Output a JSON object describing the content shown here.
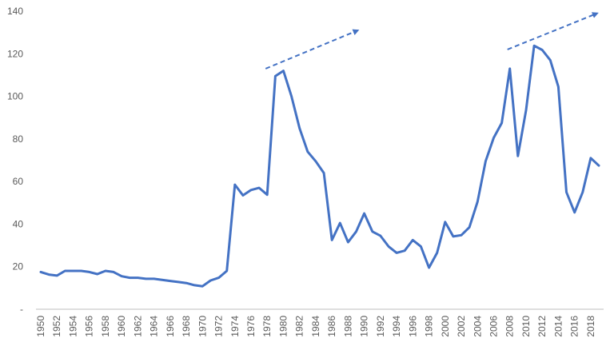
{
  "chart_data": {
    "type": "line",
    "title": "",
    "xlabel": "",
    "ylabel": "",
    "ylim": [
      0,
      140
    ],
    "grid": false,
    "legend": "none",
    "y_ticks": [
      0,
      20,
      40,
      60,
      80,
      100,
      120,
      140
    ],
    "y_tick_labels": [
      "-",
      "20",
      "40",
      "60",
      "80",
      "100",
      "120",
      "140"
    ],
    "x_tick_labels": [
      "1950",
      "1952",
      "1954",
      "1956",
      "1958",
      "1960",
      "1962",
      "1964",
      "1966",
      "1968",
      "1970",
      "1972",
      "1974",
      "1976",
      "1978",
      "1980",
      "1982",
      "1984",
      "1986",
      "1988",
      "1990",
      "1992",
      "1994",
      "1996",
      "1998",
      "2000",
      "2002",
      "2004",
      "2006",
      "2008",
      "2010",
      "2012",
      "2014",
      "2016",
      "2018"
    ],
    "series": [
      {
        "color": "#4472C4",
        "x": [
          1950,
          1951,
          1952,
          1953,
          1954,
          1955,
          1956,
          1957,
          1958,
          1959,
          1960,
          1961,
          1962,
          1963,
          1964,
          1965,
          1966,
          1967,
          1968,
          1969,
          1970,
          1971,
          1972,
          1973,
          1974,
          1975,
          1976,
          1977,
          1978,
          1979,
          1980,
          1981,
          1982,
          1983,
          1984,
          1985,
          1986,
          1987,
          1988,
          1989,
          1990,
          1991,
          1992,
          1993,
          1994,
          1995,
          1996,
          1997,
          1998,
          1999,
          2000,
          2001,
          2002,
          2003,
          2004,
          2005,
          2006,
          2007,
          2008,
          2009,
          2010,
          2011,
          2012,
          2013,
          2014,
          2015,
          2016,
          2017,
          2018,
          2019
        ],
        "values": [
          17.5,
          16.3,
          15.8,
          18,
          18,
          18,
          17.5,
          16.5,
          18,
          17.5,
          15.5,
          14.8,
          14.8,
          14.3,
          14.3,
          13.8,
          13.3,
          12.8,
          12.3,
          11.3,
          10.8,
          13.5,
          14.8,
          18,
          58.5,
          53.5,
          56,
          57,
          53.8,
          109.5,
          112,
          100,
          85,
          74,
          69.5,
          64,
          32.5,
          40.5,
          31.5,
          36.5,
          45,
          36.5,
          34.5,
          29.5,
          26.5,
          27.5,
          32.5,
          29.5,
          19.5,
          26.5,
          41,
          34.2,
          34.8,
          38.5,
          50.5,
          69.5,
          80.5,
          87.5,
          113,
          72,
          93.5,
          123.8,
          121.8,
          117,
          104.5,
          55,
          45.5,
          55,
          71,
          67.5
        ]
      }
    ],
    "annotations": [
      {
        "type": "dashed-arrow",
        "color": "#4472C4",
        "from": [
          1977.8,
          113
        ],
        "to": [
          1989.2,
          131
        ]
      },
      {
        "type": "dashed-arrow",
        "color": "#4472C4",
        "from": [
          2007.7,
          122
        ],
        "to": [
          2018.8,
          139
        ]
      }
    ]
  }
}
